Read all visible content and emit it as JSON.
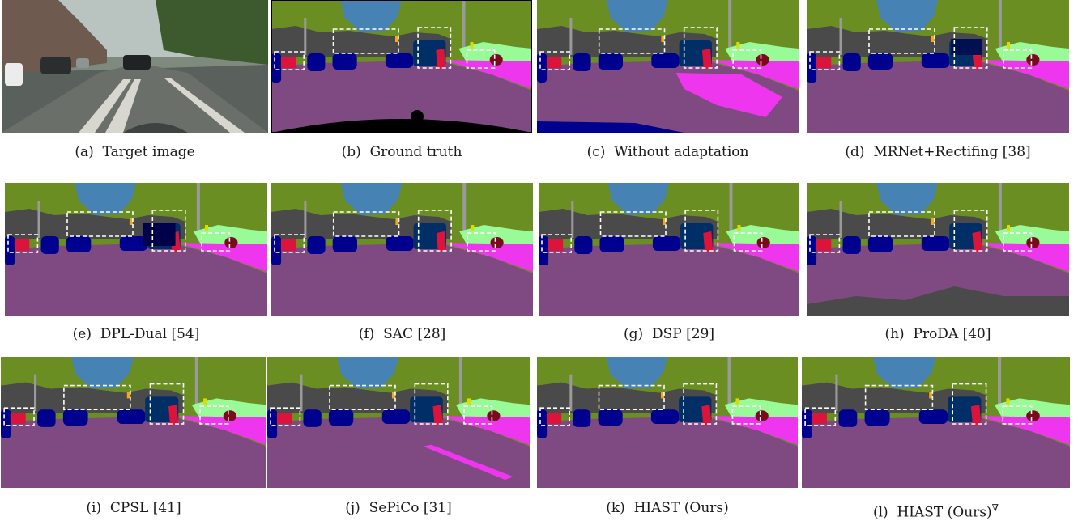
{
  "figure": {
    "panels": [
      {
        "id": "a",
        "letter": "(a)",
        "label": "Target image",
        "kind": "photo"
      },
      {
        "id": "b",
        "letter": "(b)",
        "label": "Ground truth",
        "kind": "ground-truth"
      },
      {
        "id": "c",
        "letter": "(c)",
        "label": "Without adaptation",
        "kind": "seg",
        "variant": "noadapt"
      },
      {
        "id": "d",
        "letter": "(d)",
        "label": "MRNet+Rectifing [38]",
        "kind": "seg",
        "variant": "mrnet"
      },
      {
        "id": "e",
        "letter": "(e)",
        "label": "DPL-Dual [54]",
        "kind": "seg",
        "variant": "dpl"
      },
      {
        "id": "f",
        "letter": "(f)",
        "label": "SAC [28]",
        "kind": "seg",
        "variant": "clean"
      },
      {
        "id": "g",
        "letter": "(g)",
        "label": "DSP [29]",
        "kind": "seg",
        "variant": "clean"
      },
      {
        "id": "h",
        "letter": "(h)",
        "label": "ProDA [40]",
        "kind": "seg",
        "variant": "proda"
      },
      {
        "id": "i",
        "letter": "(i)",
        "label": "CPSL [41]",
        "kind": "seg",
        "variant": "clean"
      },
      {
        "id": "j",
        "letter": "(j)",
        "label": "SePiCo [31]",
        "kind": "seg",
        "variant": "sepico"
      },
      {
        "id": "k",
        "letter": "(k)",
        "label": "HIAST (Ours)",
        "kind": "seg",
        "variant": "clean"
      },
      {
        "id": "l",
        "letter": "(l)",
        "label": "HIAST (Ours)",
        "superscript": "∇",
        "kind": "seg",
        "variant": "clean"
      }
    ]
  },
  "colors": {
    "road": "#7f4a82",
    "sidewalk": "#ee36ee",
    "building": "#4a4a4a",
    "vegetation": "#6b8e23",
    "sky": "#4682b4",
    "car": "#00008e",
    "truck": "#002e66",
    "person": "#dc143c",
    "rider": "#7a0b1e",
    "terrain": "#98fb98",
    "pole": "#9a9a9a",
    "traffic_sign": "#dcdc00",
    "traffic_light": "#f5a623",
    "void": "#000000",
    "highlight_box": "#ffffff"
  }
}
